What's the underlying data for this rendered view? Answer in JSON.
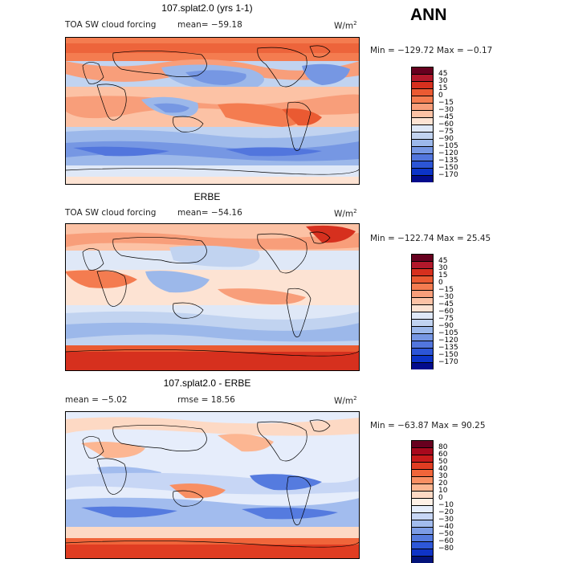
{
  "header": {
    "season": "ANN"
  },
  "colors": {
    "scale1": [
      "#67001f",
      "#b2182b",
      "#d6301e",
      "#ea5a32",
      "#f47c50",
      "#f89e7a",
      "#fcc2a5",
      "#fde3d3",
      "#dfe8f7",
      "#c1d3f0",
      "#9cb8ea",
      "#7697e3",
      "#5276dd",
      "#2c55d6",
      "#0c34c7",
      "#030c8c"
    ],
    "scale3": [
      "#67001f",
      "#a8091d",
      "#c81b1b",
      "#e03d22",
      "#f0653a",
      "#f88f63",
      "#fcb692",
      "#fdd9c4",
      "#fef0e6",
      "#e6edfb",
      "#c7d6f5",
      "#a2bcee",
      "#7c9ce6",
      "#557bdf",
      "#2e58d8",
      "#0f34c6",
      "#03137a"
    ]
  },
  "chart_data": [
    {
      "type": "heatmap",
      "title": "107.splat2.0 (yrs 1-1)",
      "variable": "TOA SW cloud forcing",
      "stat_text": "mean=  −59.18",
      "units": "W/m",
      "units_exp": "2",
      "minmax": "Min = −129.72 Max =  −0.17",
      "levels": [
        "45",
        "30",
        "15",
        "0",
        "−15",
        "−30",
        "−45",
        "−60",
        "−75",
        "−90",
        "−105",
        "−120",
        "−135",
        "−150",
        "−170"
      ],
      "palette": "scale1"
    },
    {
      "type": "heatmap",
      "title": "ERBE",
      "variable": "TOA SW cloud forcing",
      "stat_text": "mean=  −54.16",
      "units": "W/m",
      "units_exp": "2",
      "minmax": "Min = −122.74 Max =  25.45",
      "levels": [
        "45",
        "30",
        "15",
        "0",
        "−15",
        "−30",
        "−45",
        "−60",
        "−75",
        "−90",
        "−105",
        "−120",
        "−135",
        "−150",
        "−170"
      ],
      "palette": "scale1"
    },
    {
      "type": "heatmap",
      "title": "107.splat2.0 - ERBE",
      "mean_text": "mean =   −5.02",
      "rmse_text": "rmse =   18.56",
      "units": "W/m",
      "units_exp": "2",
      "minmax": "Min = −63.87 Max =  90.25",
      "levels": [
        "80",
        "60",
        "50",
        "40",
        "30",
        "20",
        "10",
        "0",
        "−10",
        "−20",
        "−30",
        "−40",
        "−50",
        "−60",
        "−80"
      ],
      "palette": "scale3"
    }
  ]
}
